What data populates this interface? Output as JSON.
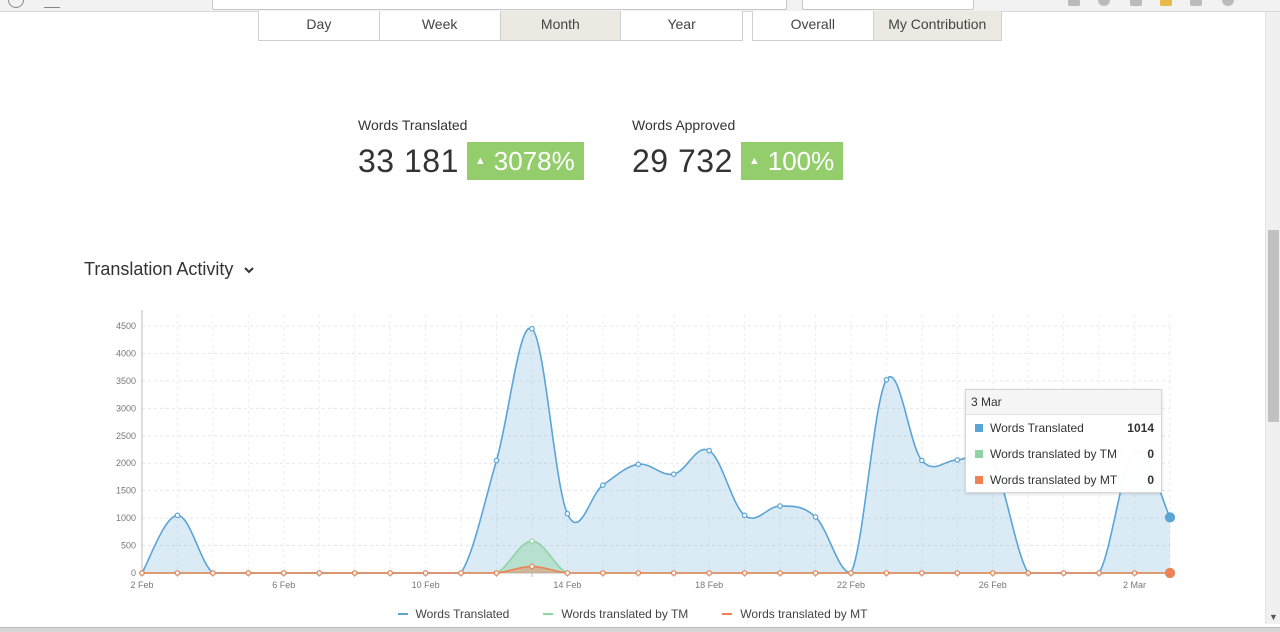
{
  "period_tabs": [
    {
      "label": "Day",
      "active": false
    },
    {
      "label": "Week",
      "active": false
    },
    {
      "label": "Month",
      "active": true
    },
    {
      "label": "Year",
      "active": false
    }
  ],
  "scope_tabs": [
    {
      "label": "Overall",
      "active": false
    },
    {
      "label": "My Contribution",
      "active": true
    }
  ],
  "stats": {
    "translated": {
      "label": "Words Translated",
      "value": "33 181",
      "change": "3078%"
    },
    "approved": {
      "label": "Words Approved",
      "value": "29 732",
      "change": "100%"
    }
  },
  "section_title": "Translation Activity",
  "tooltip": {
    "date": "3 Mar",
    "rows": [
      {
        "name": "Words Translated",
        "value": "1014",
        "color": "#5aa5d6"
      },
      {
        "name": "Words translated by TM",
        "value": "0",
        "color": "#8fd3a4"
      },
      {
        "name": "Words translated by MT",
        "value": "0",
        "color": "#ec8255"
      }
    ]
  },
  "chart_data": {
    "type": "area",
    "x": [
      "2 Feb",
      "3 Feb",
      "4 Feb",
      "5 Feb",
      "6 Feb",
      "7 Feb",
      "8 Feb",
      "9 Feb",
      "10 Feb",
      "11 Feb",
      "12 Feb",
      "13 Feb",
      "14 Feb",
      "15 Feb",
      "16 Feb",
      "17 Feb",
      "18 Feb",
      "19 Feb",
      "20 Feb",
      "21 Feb",
      "22 Feb",
      "23 Feb",
      "24 Feb",
      "25 Feb",
      "26 Feb",
      "27 Feb",
      "28 Feb",
      "1 Mar",
      "2 Mar",
      "3 Mar"
    ],
    "x_tick_labels": [
      "2 Feb",
      "6 Feb",
      "10 Feb",
      "14 Feb",
      "18 Feb",
      "22 Feb",
      "26 Feb",
      "2 Mar"
    ],
    "y_ticks": [
      0,
      500,
      1000,
      1500,
      2000,
      2500,
      3000,
      3500,
      4000,
      4500
    ],
    "ylim": [
      0,
      4700
    ],
    "series": [
      {
        "name": "Words Translated",
        "color": "#5aa5d6",
        "values": [
          0,
          1050,
          0,
          0,
          0,
          0,
          0,
          0,
          0,
          0,
          2050,
          4450,
          1080,
          1600,
          1980,
          1800,
          2230,
          1050,
          1220,
          1020,
          0,
          3520,
          2050,
          2060,
          2020,
          0,
          0,
          0,
          2200,
          1014
        ]
      },
      {
        "name": "Words translated by TM",
        "color": "#8fd3a4",
        "values": [
          0,
          0,
          0,
          0,
          0,
          0,
          0,
          0,
          0,
          0,
          0,
          580,
          0,
          0,
          0,
          0,
          0,
          0,
          0,
          0,
          0,
          0,
          0,
          0,
          0,
          0,
          0,
          0,
          0,
          0
        ]
      },
      {
        "name": "Words translated by MT",
        "color": "#ec8255",
        "values": [
          0,
          0,
          0,
          0,
          0,
          0,
          0,
          0,
          0,
          0,
          0,
          120,
          0,
          0,
          0,
          0,
          0,
          0,
          0,
          0,
          0,
          0,
          0,
          0,
          0,
          0,
          0,
          0,
          0,
          0
        ]
      }
    ],
    "grid": true,
    "legend_position": "bottom"
  }
}
